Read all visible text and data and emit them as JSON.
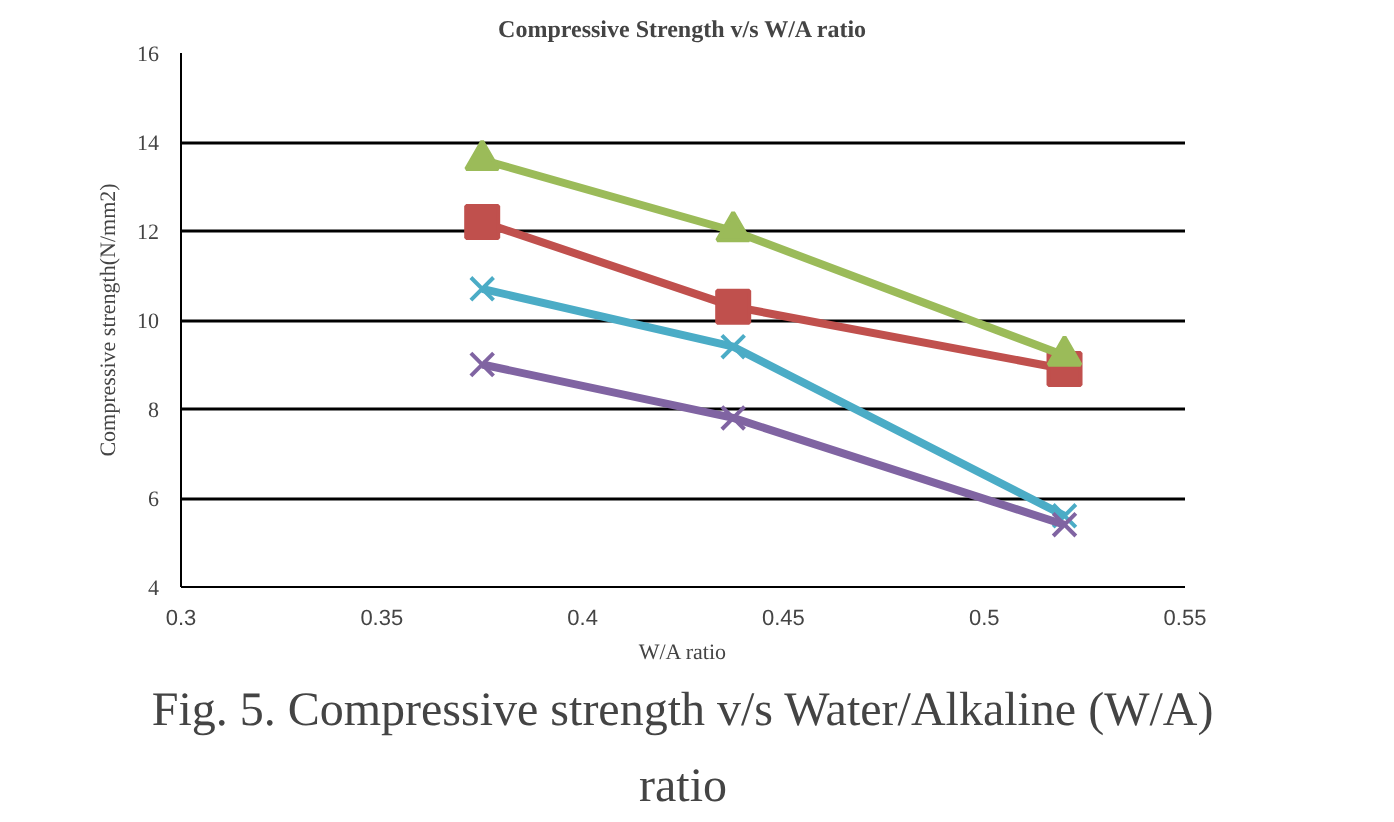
{
  "chart_data": {
    "type": "line",
    "title": "Compressive Strength v/s W/A ratio",
    "xlabel": "W/A ratio",
    "ylabel": "Compressive strength(N/mm2)",
    "x": [
      0.375,
      0.4375,
      0.52
    ],
    "series": [
      {
        "color": "#4bacc6",
        "marker": "cross",
        "values": [
          10.7,
          9.4,
          5.6
        ]
      },
      {
        "color": "#8064a2",
        "marker": "cross",
        "values": [
          9.0,
          7.8,
          5.4
        ]
      },
      {
        "color": "#c0504d",
        "marker": "square",
        "values": [
          12.2,
          10.3,
          8.9
        ]
      },
      {
        "color": "#9bbb59",
        "marker": "triangle",
        "values": [
          13.6,
          12.0,
          9.2
        ]
      }
    ],
    "xlim": [
      0.3,
      0.55
    ],
    "xticks": [
      0.3,
      0.35,
      0.4,
      0.45,
      0.5,
      0.55
    ],
    "ylim": [
      4,
      16
    ],
    "yticks": [
      4,
      6,
      8,
      10,
      12,
      14,
      16
    ],
    "grid": "y",
    "annotations": [
      "Fig. 5. Compressive strength v/s Water/Alkaline (W/A) ratio"
    ]
  }
}
